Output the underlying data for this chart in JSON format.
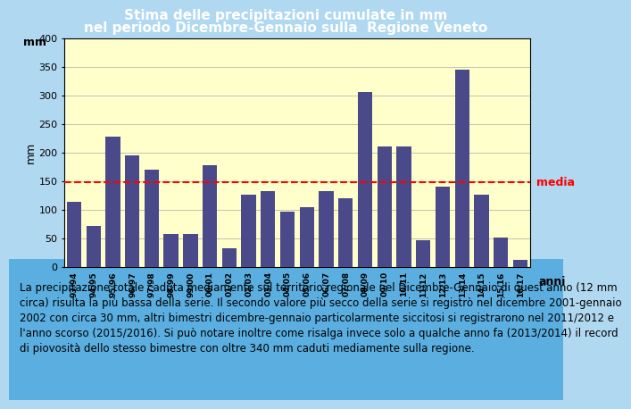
{
  "title_line1": "Stima delle precipitazioni cumulate in mm",
  "title_line2": "nel periodo Dicembre-Gennaio sulla  Regione Veneto",
  "ylabel": "mm",
  "xlabel_right": "anni",
  "categories": [
    "93/94",
    "94/95",
    "95/96",
    "96/97",
    "97/98",
    "98/99",
    "99/00",
    "00/01",
    "01/02",
    "02/03",
    "03/04",
    "04/05",
    "05/06",
    "06/07",
    "07/08",
    "08/09",
    "09/10",
    "10/11",
    "11/12",
    "12/13",
    "13/14",
    "14/15",
    "15/16",
    "16/17"
  ],
  "values": [
    113,
    72,
    228,
    195,
    170,
    58,
    57,
    178,
    32,
    126,
    133,
    97,
    104,
    132,
    120,
    305,
    210,
    210,
    47,
    140,
    345,
    127,
    52,
    12
  ],
  "bar_color": "#4a4a8a",
  "media_value": 148,
  "media_color": "#ff0000",
  "media_label": "media",
  "ylim": [
    0,
    400
  ],
  "yticks": [
    0,
    50,
    100,
    150,
    200,
    250,
    300,
    350,
    400
  ],
  "plot_bg": "#ffffcc",
  "outer_bg_top": "#b0d8f0",
  "outer_bg_bottom": "#4da6e0",
  "title_color": "#ffffff",
  "ylabel_color": "#000000",
  "grid_color": "#aaaaaa",
  "caption_line1": "La precipitazione totale caduta mediamente sul territorio regionale nel Dicembre-Gennaio di quest'anno (12 mm",
  "caption_line2": "circa) risulta la più bassa della serie. Il secondo valore più secco della serie si registrò nel dicembre 2001-gennaio",
  "caption_line3": "2002 con circa 30 mm, altri bimestri dicembre-gennaio particolarmente siccitosi si registrarono nel 2011/2012 e",
  "caption_line4": "l'anno scorso (2015/2016). Si può notare inoltre come risalga invece solo a qualche anno fa (2013/2014) il record",
  "caption_line5": "di piovosità dello stesso bimestre con oltre 340 mm caduti mediamente sulla regione.",
  "caption_fontsize": 8.5,
  "title_fontsize": 11,
  "axis_fontsize": 8,
  "ylabel_fontsize": 9,
  "xlabel_right_fontsize": 9
}
